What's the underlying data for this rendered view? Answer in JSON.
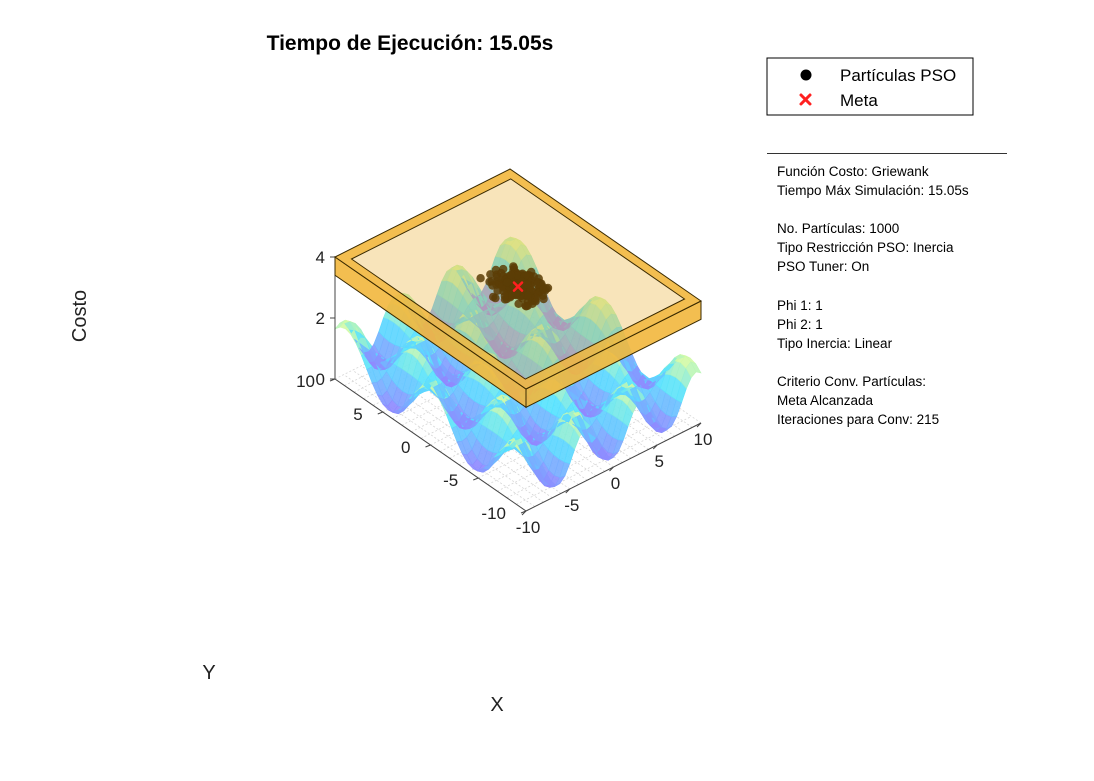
{
  "chart_data": {
    "type": "surface3d",
    "title": "Tiempo de Ejecución: 15.05s",
    "xlabel": "X",
    "ylabel": "Y",
    "zlabel": "Costo",
    "xlim": [
      -10,
      10
    ],
    "ylim": [
      -10,
      10
    ],
    "zlim": [
      0,
      4
    ],
    "x_ticks": [
      -10,
      -5,
      0,
      5,
      10
    ],
    "y_ticks": [
      -10,
      -5,
      0,
      5,
      10
    ],
    "z_ticks": [
      0,
      2,
      4
    ],
    "grid": true,
    "surface_function": "griewank",
    "colors": {
      "surface_low": "#9a86ff",
      "surface_mid": "#56e4ff",
      "surface_high": "#eaff8a",
      "box_fill": "#ecb13a",
      "box_face": "#f2b73d",
      "box_edge": "#3a2a00",
      "particles": "#5c3d06",
      "meta": "#ff2020"
    },
    "constraint_box": {
      "x_range": [
        -10,
        10
      ],
      "y_range": [
        -10,
        10
      ],
      "z_range": [
        3.4,
        4
      ]
    },
    "meta_point": {
      "x": 0,
      "y": 0,
      "z": 0
    },
    "legend": {
      "placement": "top-right",
      "entries": [
        {
          "label": "Partículas PSO",
          "marker": "circle",
          "color": "#000000"
        },
        {
          "label": "Meta",
          "marker": "x",
          "color": "#ff2020"
        }
      ]
    }
  },
  "info": {
    "funcion_costo": "Función Costo: Griewank",
    "tiempo_max": "Tiempo Máx Simulación: 15.05s",
    "no_particulas": "No. Partículas: 1000",
    "tipo_restriccion": "Tipo Restricción PSO: Inercia",
    "pso_tuner": "PSO Tuner: On",
    "phi1": "Phi 1: 1",
    "phi2": "Phi 2: 1",
    "tipo_inercia": "Tipo Inercia: Linear",
    "criterio_label": "Criterio Conv. Partículas:",
    "criterio_value": "Meta Alcanzada",
    "iteraciones": "Iteraciones para Conv: 215"
  }
}
